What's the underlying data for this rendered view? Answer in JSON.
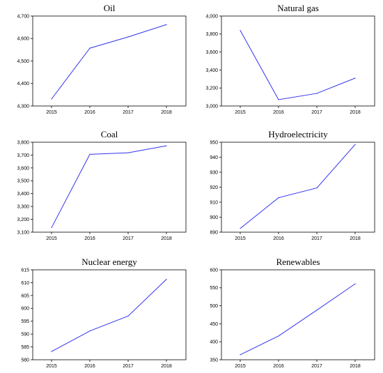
{
  "line_color": "#3333ee",
  "chart_data": [
    {
      "type": "line",
      "title": "Oil",
      "x": [
        "2015",
        "2016",
        "2017",
        "2018"
      ],
      "values": [
        4331,
        4557,
        4607,
        4662
      ],
      "ylim": [
        4300,
        4700
      ],
      "yticks": [
        4300,
        4400,
        4500,
        4600,
        4700
      ],
      "ytick_labels": [
        "4,300",
        "4,400",
        "4,500",
        "4,600",
        "4,700"
      ]
    },
    {
      "type": "line",
      "title": "Natural gas",
      "x": [
        "2015",
        "2016",
        "2017",
        "2018"
      ],
      "values": [
        3840,
        3070,
        3140,
        3310
      ],
      "ylim": [
        3000,
        4000
      ],
      "yticks": [
        3000,
        3200,
        3400,
        3600,
        3800,
        4000
      ],
      "ytick_labels": [
        "3,000",
        "3,200",
        "3,400",
        "3,600",
        "3,800",
        "4,000"
      ]
    },
    {
      "type": "line",
      "title": "Coal",
      "x": [
        "2015",
        "2016",
        "2017",
        "2018"
      ],
      "values": [
        3135,
        3706,
        3718,
        3772
      ],
      "ylim": [
        3100,
        3800
      ],
      "yticks": [
        3100,
        3200,
        3300,
        3400,
        3500,
        3600,
        3700,
        3800
      ],
      "ytick_labels": [
        "3,100",
        "3,200",
        "3,300",
        "3,400",
        "3,500",
        "3,600",
        "3,700",
        "3,800"
      ]
    },
    {
      "type": "line",
      "title": "Hydroelectricity",
      "x": [
        "2015",
        "2016",
        "2017",
        "2018"
      ],
      "values": [
        892.5,
        913,
        919.5,
        948.5
      ],
      "ylim": [
        890,
        950
      ],
      "yticks": [
        890,
        900,
        910,
        920,
        930,
        940,
        950
      ],
      "ytick_labels": [
        "890",
        "900",
        "910",
        "920",
        "930",
        "940",
        "950"
      ]
    },
    {
      "type": "line",
      "title": "Nuclear energy",
      "x": [
        "2015",
        "2016",
        "2017",
        "2018"
      ],
      "values": [
        583.2,
        591.2,
        597,
        611.3
      ],
      "ylim": [
        580,
        615
      ],
      "yticks": [
        580,
        585,
        590,
        595,
        600,
        605,
        610,
        615
      ],
      "ytick_labels": [
        "580",
        "585",
        "590",
        "595",
        "600",
        "605",
        "610",
        "615"
      ]
    },
    {
      "type": "line",
      "title": "Renewables",
      "x": [
        "2015",
        "2016",
        "2017",
        "2018"
      ],
      "values": [
        364,
        416,
        488,
        561
      ],
      "ylim": [
        350,
        600
      ],
      "yticks": [
        350,
        400,
        450,
        500,
        550,
        600
      ],
      "ytick_labels": [
        "350",
        "400",
        "450",
        "500",
        "550",
        "600"
      ]
    }
  ]
}
